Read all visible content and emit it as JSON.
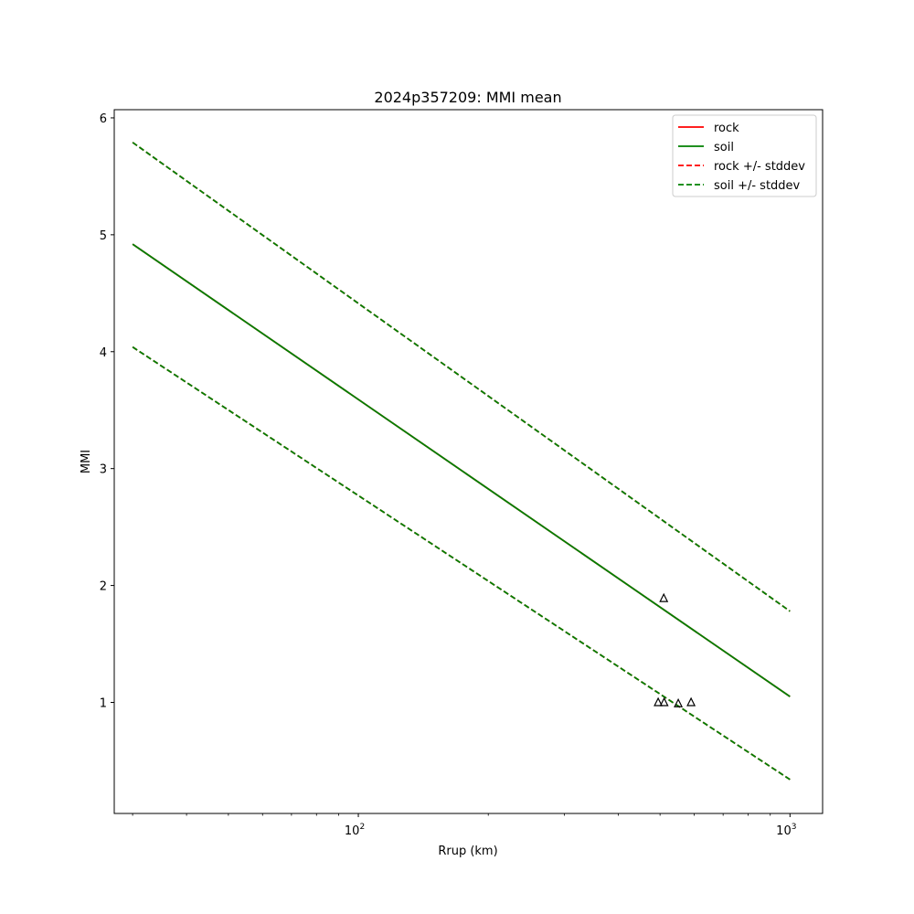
{
  "chart_data": {
    "type": "line",
    "title": "2024p357209: MMI mean",
    "xlabel": "Rrup (km)",
    "ylabel": "MMI",
    "xscale": "log",
    "xlim": [
      27.2,
      1190
    ],
    "ylim": [
      0.05,
      6.07
    ],
    "x_ticks": [
      {
        "value": 100,
        "base": "10",
        "exp": "2"
      },
      {
        "value": 1000,
        "base": "10",
        "exp": "3"
      }
    ],
    "y_ticks": [
      {
        "value": 1,
        "label": "1"
      },
      {
        "value": 2,
        "label": "2"
      },
      {
        "value": 3,
        "label": "3"
      },
      {
        "value": 4,
        "label": "4"
      },
      {
        "value": 5,
        "label": "5"
      },
      {
        "value": 6,
        "label": "6"
      }
    ],
    "grid": false,
    "legend_position": "top-right",
    "series": [
      {
        "name": "rock",
        "style": "solid",
        "color": "#ff0000",
        "x": [
          30,
          1000
        ],
        "y": [
          4.92,
          1.05
        ]
      },
      {
        "name": "soil",
        "style": "solid",
        "color": "#008000",
        "x": [
          30,
          1000
        ],
        "y": [
          4.92,
          1.05
        ]
      },
      {
        "name": "rock +/- stddev",
        "style": "dashed",
        "color": "#ff0000",
        "x": [
          30,
          1000
        ],
        "y": [
          5.79,
          1.78
        ],
        "y_lower": [
          4.04,
          0.34
        ]
      },
      {
        "name": "soil +/- stddev",
        "style": "dashed",
        "color": "#008000",
        "x": [
          30,
          1000
        ],
        "y": [
          5.79,
          1.78
        ],
        "y_lower": [
          4.04,
          0.34
        ]
      }
    ],
    "observations": {
      "marker": "triangle",
      "x": [
        510,
        495,
        511,
        551,
        590
      ],
      "y": [
        1.89,
        1.0,
        1.0,
        0.99,
        1.0
      ]
    }
  }
}
